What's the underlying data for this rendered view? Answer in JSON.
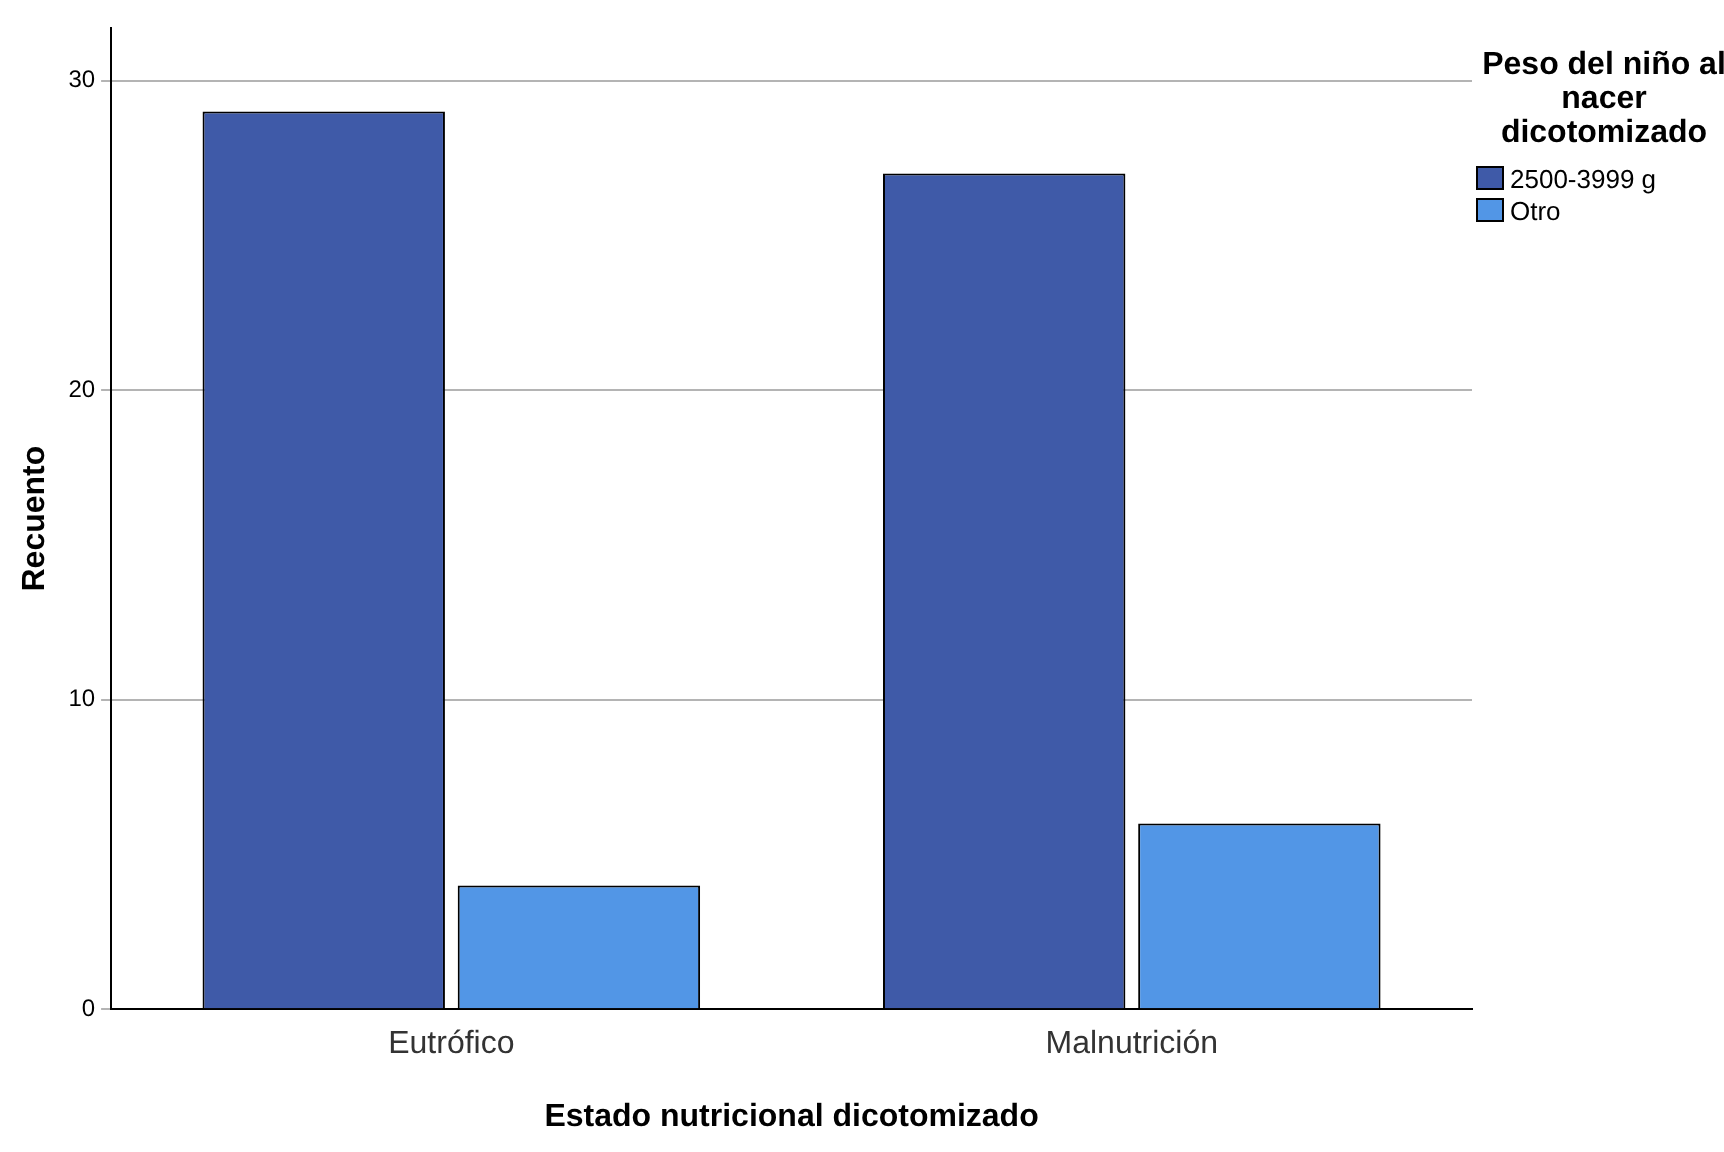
{
  "chart_data": {
    "type": "bar",
    "xlabel": "Estado nutricional dicotomizado",
    "ylabel": "Recuento",
    "legend_title": "Peso del niño al nacer dicotomizado",
    "categories": [
      "Eutrófico",
      "Malnutrición"
    ],
    "series": [
      {
        "name": "2500-3999 g",
        "color": "#3f5aa8",
        "values": [
          29,
          27
        ]
      },
      {
        "name": "Otro",
        "color": "#5296e6",
        "values": [
          4,
          6
        ]
      }
    ],
    "ylim": [
      0,
      31.7
    ],
    "yticks": [
      0,
      10,
      20,
      30
    ],
    "grid": "y",
    "legend": "top right"
  }
}
